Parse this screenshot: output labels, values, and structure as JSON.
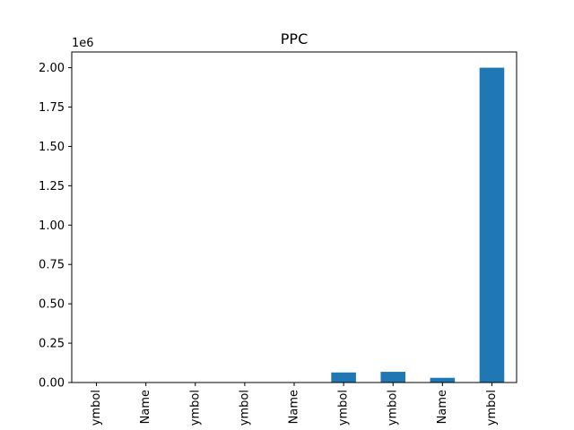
{
  "chart_data": {
    "type": "bar",
    "title": "PPC",
    "xlabel": "",
    "ylabel": "",
    "y_offset_label": "1e6",
    "categories": [
      "ymbol",
      "Name",
      "ymbol",
      "ymbol",
      "Name",
      "ymbol",
      "ymbol",
      "Name",
      "ymbol"
    ],
    "values": [
      0,
      0,
      0,
      0,
      0,
      64000,
      68000,
      30000,
      2000000
    ],
    "ylim": [
      0,
      2100000
    ],
    "yticks": [
      0,
      250000,
      500000,
      750000,
      1000000,
      1250000,
      1500000,
      1750000,
      2000000
    ],
    "ytick_labels": [
      "0.00",
      "0.25",
      "0.50",
      "0.75",
      "1.00",
      "1.25",
      "1.50",
      "1.75",
      "2.00"
    ],
    "grid": false,
    "bar_color": "#1f77b4"
  }
}
